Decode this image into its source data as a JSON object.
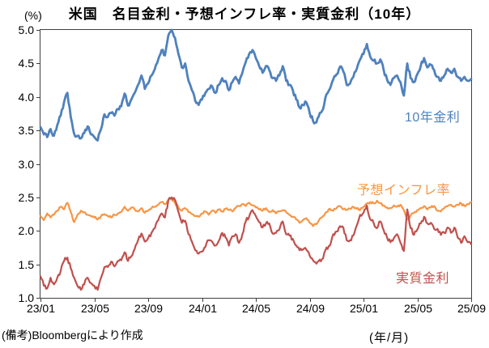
{
  "page": {
    "background": "#ffffff"
  },
  "footnote": "(備考)Bloombergにより作成",
  "chart_data": {
    "type": "line",
    "title": "米国　名目金利・予想インフレ率・実質金利（10年）",
    "y_unit": "(%)",
    "x_unit": "(年/月)",
    "ylim": [
      1.0,
      5.0
    ],
    "y_tick_step": 0.5,
    "y_ticks": [
      "5.0",
      "4.5",
      "4.0",
      "3.5",
      "3.0",
      "2.5",
      "2.0",
      "1.5",
      "1.0"
    ],
    "x_ticks": [
      "23/01",
      "23/05",
      "23/09",
      "24/01",
      "24/05",
      "24/09",
      "25/01",
      "25/05",
      "25/09"
    ],
    "x_start": "23/01",
    "x_end": "25/09",
    "points_per_month": 4,
    "grid": false,
    "legend": "inline-labels",
    "axis_color": "#404040",
    "series": [
      {
        "name": "10年金利",
        "color": "#4F81BD",
        "width": 2.8,
        "noise": 0.032,
        "values": [
          3.55,
          3.44,
          3.4,
          3.52,
          3.42,
          3.58,
          3.72,
          3.92,
          4.06,
          3.7,
          3.45,
          3.42,
          3.38,
          3.46,
          3.56,
          3.44,
          3.4,
          3.35,
          3.52,
          3.74,
          3.7,
          3.76,
          3.72,
          3.82,
          3.86,
          4.05,
          3.87,
          3.96,
          4.06,
          4.18,
          4.32,
          4.12,
          4.2,
          4.32,
          4.42,
          4.56,
          4.7,
          4.62,
          4.92,
          5.0,
          4.88,
          4.64,
          4.44,
          4.5,
          4.24,
          4.1,
          3.94,
          3.88,
          3.96,
          4.06,
          4.12,
          4.16,
          4.06,
          4.18,
          4.28,
          4.24,
          4.1,
          4.22,
          4.3,
          4.2,
          4.36,
          4.52,
          4.64,
          4.7,
          4.58,
          4.46,
          4.36,
          4.46,
          4.4,
          4.28,
          4.24,
          4.32,
          4.46,
          4.24,
          4.18,
          4.1,
          3.96,
          3.84,
          3.88,
          3.92,
          3.76,
          3.64,
          3.62,
          3.76,
          3.82,
          4.04,
          4.12,
          4.26,
          4.34,
          4.45,
          4.38,
          4.18,
          4.2,
          4.3,
          4.42,
          4.56,
          4.64,
          4.79,
          4.6,
          4.54,
          4.5,
          4.56,
          4.4,
          4.26,
          4.18,
          4.28,
          4.32,
          4.22,
          4.02,
          4.5,
          4.28,
          4.22,
          4.34,
          4.46,
          4.58,
          4.44,
          4.48,
          4.4,
          4.3,
          4.24,
          4.32,
          4.42,
          4.36,
          4.42,
          4.3,
          4.24,
          4.3,
          4.24,
          4.27
        ]
      },
      {
        "name": "予想インフレ率",
        "color": "#F79646",
        "width": 2.2,
        "noise": 0.018,
        "values": [
          2.22,
          2.16,
          2.26,
          2.2,
          2.24,
          2.3,
          2.36,
          2.32,
          2.42,
          2.28,
          2.13,
          2.24,
          2.3,
          2.28,
          2.24,
          2.22,
          2.2,
          2.17,
          2.22,
          2.25,
          2.22,
          2.2,
          2.24,
          2.26,
          2.28,
          2.36,
          2.3,
          2.35,
          2.32,
          2.29,
          2.34,
          2.27,
          2.3,
          2.34,
          2.36,
          2.39,
          2.43,
          2.4,
          2.46,
          2.47,
          2.41,
          2.35,
          2.3,
          2.34,
          2.28,
          2.25,
          2.22,
          2.21,
          2.26,
          2.29,
          2.24,
          2.3,
          2.27,
          2.32,
          2.29,
          2.33,
          2.31,
          2.29,
          2.34,
          2.37,
          2.4,
          2.37,
          2.42,
          2.38,
          2.35,
          2.32,
          2.3,
          2.34,
          2.28,
          2.31,
          2.26,
          2.29,
          2.31,
          2.28,
          2.24,
          2.21,
          2.17,
          2.12,
          2.16,
          2.19,
          2.12,
          2.07,
          2.1,
          2.18,
          2.22,
          2.28,
          2.33,
          2.3,
          2.34,
          2.37,
          2.32,
          2.31,
          2.33,
          2.36,
          2.33,
          2.31,
          2.36,
          2.41,
          2.43,
          2.41,
          2.45,
          2.41,
          2.38,
          2.35,
          2.34,
          2.38,
          2.36,
          2.39,
          2.31,
          2.17,
          2.23,
          2.27,
          2.31,
          2.34,
          2.37,
          2.32,
          2.35,
          2.37,
          2.3,
          2.29,
          2.34,
          2.37,
          2.39,
          2.36,
          2.39,
          2.41,
          2.37,
          2.4,
          2.43
        ]
      },
      {
        "name": "実質金利",
        "color": "#C0504D",
        "width": 2.2,
        "noise": 0.032,
        "values": [
          1.32,
          1.18,
          1.14,
          1.3,
          1.2,
          1.3,
          1.4,
          1.55,
          1.6,
          1.44,
          1.3,
          1.18,
          1.12,
          1.2,
          1.3,
          1.22,
          1.18,
          1.12,
          1.3,
          1.46,
          1.46,
          1.54,
          1.47,
          1.55,
          1.56,
          1.68,
          1.55,
          1.62,
          1.73,
          1.86,
          1.96,
          1.84,
          1.89,
          1.97,
          2.04,
          2.16,
          2.26,
          2.2,
          2.46,
          2.5,
          2.46,
          2.28,
          2.12,
          2.15,
          1.95,
          1.84,
          1.71,
          1.66,
          1.69,
          1.76,
          1.86,
          1.84,
          1.78,
          1.85,
          1.97,
          1.9,
          1.78,
          1.92,
          1.95,
          1.82,
          1.95,
          2.14,
          2.21,
          2.31,
          2.22,
          2.13,
          2.05,
          2.11,
          2.11,
          1.96,
          1.97,
          2.02,
          2.14,
          1.95,
          1.93,
          1.88,
          1.78,
          1.71,
          1.72,
          1.72,
          1.63,
          1.56,
          1.51,
          1.57,
          1.59,
          1.75,
          1.78,
          1.95,
          1.99,
          2.07,
          2.05,
          1.86,
          1.86,
          1.93,
          2.08,
          2.24,
          2.27,
          2.38,
          2.17,
          2.12,
          2.04,
          2.14,
          2.01,
          1.9,
          1.83,
          1.89,
          1.95,
          1.82,
          1.7,
          2.32,
          2.04,
          1.94,
          2.02,
          2.11,
          2.21,
          2.11,
          2.12,
          2.03,
          2.03,
          1.94,
          1.97,
          2.05,
          1.97,
          2.05,
          1.9,
          1.82,
          1.92,
          1.83,
          1.8
        ]
      }
    ]
  }
}
